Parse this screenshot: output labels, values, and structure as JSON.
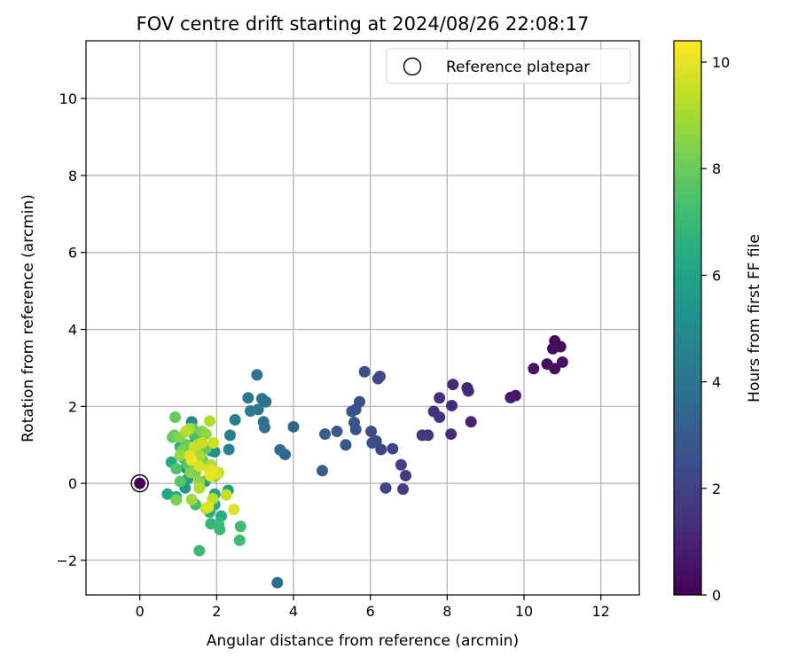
{
  "chart_data": {
    "type": "scatter",
    "title": "FOV centre drift starting at 2024/08/26 22:08:17",
    "xlabel": "Angular distance from reference (arcmin)",
    "ylabel": "Rotation from reference (arcmin)",
    "xlim": [
      -1.4,
      13
    ],
    "ylim": [
      -2.9,
      11.5
    ],
    "xticks": [
      0,
      2,
      4,
      6,
      8,
      10,
      12
    ],
    "yticks": [
      -2,
      0,
      2,
      4,
      6,
      8,
      10
    ],
    "xtick_labels": [
      "0",
      "2",
      "4",
      "6",
      "8",
      "10",
      "12"
    ],
    "ytick_labels": [
      "−2",
      "0",
      "2",
      "4",
      "6",
      "8",
      "10"
    ],
    "grid": true,
    "legend": {
      "placement": "top-right",
      "entries": [
        "Reference platepar"
      ]
    },
    "colorbar": {
      "label": "Hours from first FF file",
      "range": [
        0,
        10.4
      ],
      "ticks": [
        0,
        2,
        4,
        6,
        8,
        10
      ],
      "tick_labels": [
        "0",
        "2",
        "4",
        "6",
        "8",
        "10"
      ],
      "colormap": "viridis"
    },
    "reference": {
      "x": 0,
      "y": 0,
      "label": "Reference platepar"
    },
    "points": [
      {
        "x": 0,
        "y": 0,
        "t": 0.05
      },
      {
        "x": 10.8,
        "y": 3.7,
        "t": 0.2
      },
      {
        "x": 10.75,
        "y": 3.5,
        "t": 0.3
      },
      {
        "x": 10.95,
        "y": 3.55,
        "t": 0.35
      },
      {
        "x": 10.6,
        "y": 3.1,
        "t": 0.4
      },
      {
        "x": 10.8,
        "y": 2.98,
        "t": 0.45
      },
      {
        "x": 11.0,
        "y": 3.15,
        "t": 0.5
      },
      {
        "x": 10.25,
        "y": 2.98,
        "t": 0.6
      },
      {
        "x": 9.78,
        "y": 2.28,
        "t": 0.7
      },
      {
        "x": 9.65,
        "y": 2.23,
        "t": 0.75
      },
      {
        "x": 8.62,
        "y": 1.6,
        "t": 1.0
      },
      {
        "x": 8.52,
        "y": 2.48,
        "t": 1.1
      },
      {
        "x": 8.55,
        "y": 2.4,
        "t": 1.15
      },
      {
        "x": 8.15,
        "y": 2.57,
        "t": 1.2
      },
      {
        "x": 8.12,
        "y": 2.02,
        "t": 1.25
      },
      {
        "x": 8.1,
        "y": 1.28,
        "t": 1.3
      },
      {
        "x": 7.8,
        "y": 2.22,
        "t": 1.4
      },
      {
        "x": 7.8,
        "y": 1.72,
        "t": 1.45
      },
      {
        "x": 7.65,
        "y": 1.87,
        "t": 1.5
      },
      {
        "x": 7.5,
        "y": 1.25,
        "t": 1.6
      },
      {
        "x": 7.35,
        "y": 1.25,
        "t": 1.7
      },
      {
        "x": 6.92,
        "y": 0.2,
        "t": 1.8
      },
      {
        "x": 6.85,
        "y": -0.15,
        "t": 1.85
      },
      {
        "x": 6.8,
        "y": 0.48,
        "t": 1.9
      },
      {
        "x": 6.4,
        "y": -0.12,
        "t": 2.0
      },
      {
        "x": 6.58,
        "y": 0.9,
        "t": 2.05
      },
      {
        "x": 6.28,
        "y": 0.88,
        "t": 2.1
      },
      {
        "x": 6.25,
        "y": 2.78,
        "t": 2.2
      },
      {
        "x": 6.2,
        "y": 2.72,
        "t": 2.25
      },
      {
        "x": 6.05,
        "y": 1.05,
        "t": 2.3
      },
      {
        "x": 6.15,
        "y": 1.1,
        "t": 2.35
      },
      {
        "x": 6.02,
        "y": 1.35,
        "t": 2.4
      },
      {
        "x": 5.85,
        "y": 2.9,
        "t": 2.5
      },
      {
        "x": 5.72,
        "y": 2.12,
        "t": 2.55
      },
      {
        "x": 5.62,
        "y": 1.92,
        "t": 2.6
      },
      {
        "x": 5.58,
        "y": 1.58,
        "t": 2.65
      },
      {
        "x": 5.62,
        "y": 1.4,
        "t": 2.7
      },
      {
        "x": 5.52,
        "y": 1.87,
        "t": 2.75
      },
      {
        "x": 5.36,
        "y": 1.0,
        "t": 2.85
      },
      {
        "x": 5.13,
        "y": 1.35,
        "t": 2.95
      },
      {
        "x": 4.82,
        "y": 1.28,
        "t": 3.05
      },
      {
        "x": 4.75,
        "y": 0.33,
        "t": 3.15
      },
      {
        "x": 4.0,
        "y": 1.47,
        "t": 3.4
      },
      {
        "x": 3.78,
        "y": 0.75,
        "t": 3.55
      },
      {
        "x": 3.65,
        "y": 0.87,
        "t": 3.65
      },
      {
        "x": 3.58,
        "y": -2.58,
        "t": 3.75
      },
      {
        "x": 3.25,
        "y": 1.45,
        "t": 3.85
      },
      {
        "x": 3.22,
        "y": 1.6,
        "t": 3.9
      },
      {
        "x": 3.28,
        "y": 2.12,
        "t": 3.95
      },
      {
        "x": 3.18,
        "y": 2.2,
        "t": 4.0
      },
      {
        "x": 3.05,
        "y": 2.82,
        "t": 4.05
      },
      {
        "x": 3.08,
        "y": 1.92,
        "t": 4.1
      },
      {
        "x": 2.88,
        "y": 1.88,
        "t": 4.2
      },
      {
        "x": 2.82,
        "y": 2.22,
        "t": 4.25
      },
      {
        "x": 2.48,
        "y": 1.65,
        "t": 4.45
      },
      {
        "x": 2.35,
        "y": 1.25,
        "t": 4.6
      },
      {
        "x": 2.32,
        "y": 0.88,
        "t": 4.7
      },
      {
        "x": 1.35,
        "y": 1.6,
        "t": 4.85
      },
      {
        "x": 1.85,
        "y": 0.85,
        "t": 5.0
      },
      {
        "x": 1.42,
        "y": 1.05,
        "t": 5.1
      },
      {
        "x": 1.95,
        "y": 0.82,
        "t": 5.2
      },
      {
        "x": 1.2,
        "y": 0.4,
        "t": 5.3
      },
      {
        "x": 1.52,
        "y": 0.45,
        "t": 5.4
      },
      {
        "x": 1.18,
        "y": -0.12,
        "t": 5.55
      },
      {
        "x": 1.7,
        "y": 0.05,
        "t": 5.7
      },
      {
        "x": 2.3,
        "y": -0.18,
        "t": 5.85
      },
      {
        "x": 1.95,
        "y": -0.28,
        "t": 5.95
      },
      {
        "x": 1.25,
        "y": 0.12,
        "t": 6.0
      },
      {
        "x": 0.72,
        "y": -0.28,
        "t": 6.1
      },
      {
        "x": 0.95,
        "y": -0.35,
        "t": 6.2
      },
      {
        "x": 0.82,
        "y": 0.55,
        "t": 6.3
      },
      {
        "x": 1.95,
        "y": -0.55,
        "t": 6.35
      },
      {
        "x": 2.12,
        "y": -0.85,
        "t": 6.45
      },
      {
        "x": 1.82,
        "y": -0.75,
        "t": 6.55
      },
      {
        "x": 1.05,
        "y": 0.95,
        "t": 6.6
      },
      {
        "x": 1.15,
        "y": 0.65,
        "t": 6.65
      },
      {
        "x": 1.6,
        "y": 1.12,
        "t": 6.7
      },
      {
        "x": 1.35,
        "y": 0.8,
        "t": 6.75
      },
      {
        "x": 1.85,
        "y": -1.05,
        "t": 6.85
      },
      {
        "x": 2.05,
        "y": -1.05,
        "t": 6.9
      },
      {
        "x": 2.08,
        "y": -1.2,
        "t": 6.95
      },
      {
        "x": 1.55,
        "y": -1.75,
        "t": 7.0
      },
      {
        "x": 2.6,
        "y": -1.48,
        "t": 7.1
      },
      {
        "x": 2.62,
        "y": -1.12,
        "t": 7.15
      },
      {
        "x": 1.45,
        "y": -0.55,
        "t": 7.25
      },
      {
        "x": 1.42,
        "y": 1.25,
        "t": 7.3
      },
      {
        "x": 1.62,
        "y": 0.62,
        "t": 7.4
      },
      {
        "x": 0.95,
        "y": 0.38,
        "t": 7.5
      },
      {
        "x": 1.05,
        "y": 0.05,
        "t": 7.6
      },
      {
        "x": 1.25,
        "y": 0.48,
        "t": 7.65
      },
      {
        "x": 0.85,
        "y": 1.2,
        "t": 7.75
      },
      {
        "x": 1.38,
        "y": 1.42,
        "t": 7.8
      },
      {
        "x": 1.72,
        "y": 0.9,
        "t": 7.85
      },
      {
        "x": 0.92,
        "y": 1.72,
        "t": 7.9
      },
      {
        "x": 0.9,
        "y": 1.25,
        "t": 8.0
      },
      {
        "x": 1.22,
        "y": 1.0,
        "t": 8.05
      },
      {
        "x": 1.45,
        "y": 0.3,
        "t": 8.1
      },
      {
        "x": 1.58,
        "y": 0.62,
        "t": 8.15
      },
      {
        "x": 0.95,
        "y": -0.43,
        "t": 8.25
      },
      {
        "x": 1.1,
        "y": 0.85,
        "t": 8.3
      },
      {
        "x": 1.62,
        "y": 1.35,
        "t": 8.35
      },
      {
        "x": 1.95,
        "y": 0.18,
        "t": 8.4
      },
      {
        "x": 1.32,
        "y": 0.28,
        "t": 8.5
      },
      {
        "x": 1.05,
        "y": 1.2,
        "t": 8.55
      },
      {
        "x": 1.55,
        "y": 0.05,
        "t": 8.6
      },
      {
        "x": 1.72,
        "y": 1.28,
        "t": 8.7
      },
      {
        "x": 1.05,
        "y": 0.72,
        "t": 8.75
      },
      {
        "x": 1.52,
        "y": 1.02,
        "t": 8.8
      },
      {
        "x": 1.35,
        "y": -0.42,
        "t": 8.9
      },
      {
        "x": 1.3,
        "y": 1.42,
        "t": 8.95
      },
      {
        "x": 1.55,
        "y": 0.72,
        "t": 9.0
      },
      {
        "x": 1.95,
        "y": 0.3,
        "t": 9.05
      },
      {
        "x": 1.85,
        "y": 0.48,
        "t": 9.1
      },
      {
        "x": 1.82,
        "y": 1.62,
        "t": 9.15
      },
      {
        "x": 1.55,
        "y": -0.12,
        "t": 9.2
      },
      {
        "x": 1.2,
        "y": 1.35,
        "t": 9.25
      },
      {
        "x": 2.05,
        "y": 0.28,
        "t": 9.3
      },
      {
        "x": 1.9,
        "y": -0.4,
        "t": 9.35
      },
      {
        "x": 1.72,
        "y": -0.65,
        "t": 9.4
      },
      {
        "x": 2.25,
        "y": -0.3,
        "t": 9.45
      },
      {
        "x": 1.42,
        "y": 0.95,
        "t": 9.5
      },
      {
        "x": 1.62,
        "y": 1.05,
        "t": 9.55
      },
      {
        "x": 1.92,
        "y": 1.05,
        "t": 9.6
      },
      {
        "x": 1.82,
        "y": 0.35,
        "t": 9.65
      },
      {
        "x": 1.55,
        "y": 0.45,
        "t": 9.7
      },
      {
        "x": 1.98,
        "y": 0.25,
        "t": 9.75
      },
      {
        "x": 1.85,
        "y": 0.18,
        "t": 9.8
      },
      {
        "x": 2.45,
        "y": -0.68,
        "t": 9.85
      },
      {
        "x": 1.78,
        "y": -0.62,
        "t": 9.9
      },
      {
        "x": 1.88,
        "y": 0.35,
        "t": 9.95
      },
      {
        "x": 1.3,
        "y": 0.72,
        "t": 10.0
      },
      {
        "x": 1.82,
        "y": 0.22,
        "t": 10.05
      },
      {
        "x": 1.35,
        "y": 0.6,
        "t": 10.1
      }
    ]
  }
}
